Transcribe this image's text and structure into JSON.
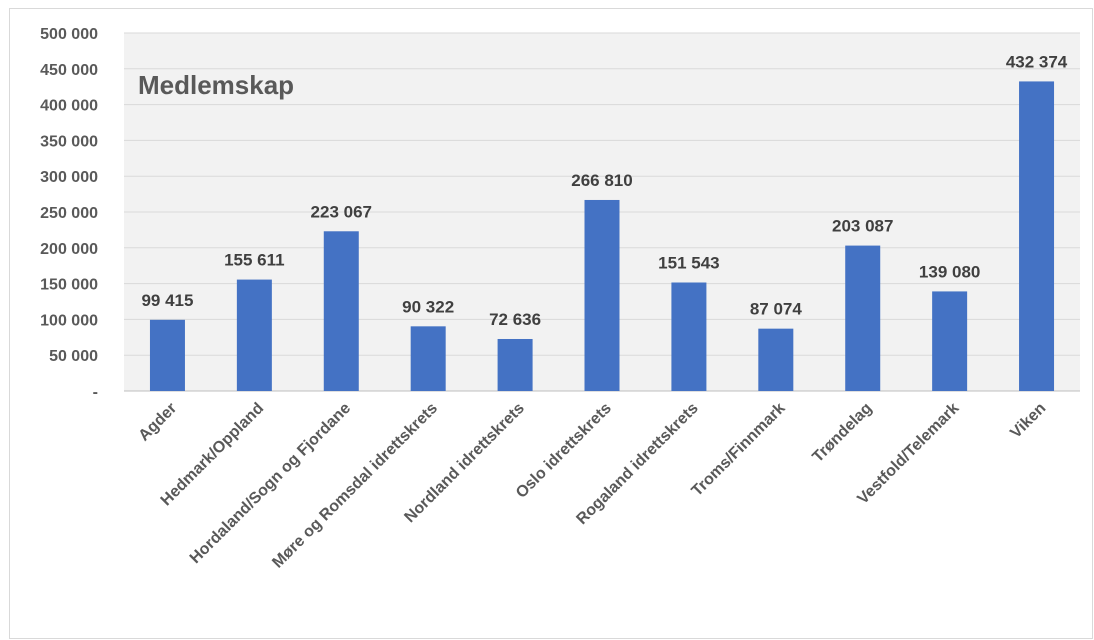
{
  "chart_data": {
    "type": "bar",
    "title": "Medlemskap",
    "categories": [
      "Agder",
      "Hedmark/Oppland",
      "Hordaland/Sogn og Fjordane",
      "Møre og Romsdal idrettskrets",
      "Nordland idrettskrets",
      "Oslo idrettskrets",
      "Rogaland idrettskrets",
      "Troms/Finnmark",
      "Trøndelag",
      "Vestfold/Telemark",
      "Viken"
    ],
    "values": [
      99415,
      155611,
      223067,
      90322,
      72636,
      266810,
      151543,
      87074,
      203087,
      139080,
      432374
    ],
    "data_labels": [
      "99 415",
      "155 611",
      "223 067",
      "90 322",
      "72 636",
      "266 810",
      "151 543",
      "87 074",
      "203 087",
      "139 080",
      "432 374"
    ],
    "yticks": [
      0,
      50000,
      100000,
      150000,
      200000,
      250000,
      300000,
      350000,
      400000,
      450000,
      500000
    ],
    "ytick_labels": [
      "-",
      "50 000",
      "100 000",
      "150 000",
      "200 000",
      "250 000",
      "300 000",
      "350 000",
      "400 000",
      "450 000",
      "500 000"
    ],
    "ylim": [
      0,
      500000
    ],
    "xlabel": "",
    "ylabel": "",
    "grid": true,
    "legend": "none",
    "bar_color": "#4472c4",
    "plot_background": "#f2f2f2"
  }
}
